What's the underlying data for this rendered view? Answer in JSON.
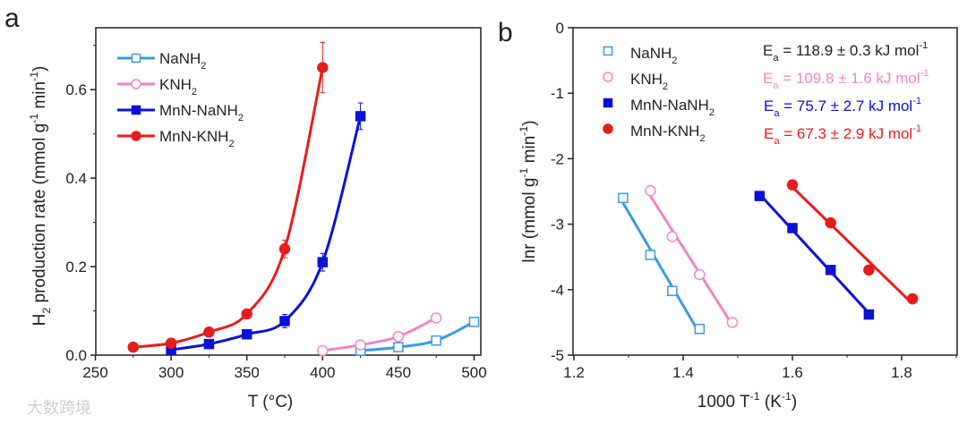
{
  "watermark": "大数跨境",
  "chart_data": [
    {
      "type": "line",
      "panel": "a",
      "xlabel": "T (°C)",
      "ylabel_parts": {
        "pre": "H",
        "sub": "2",
        "mid": " production rate (mmol g",
        "sup1": "-1",
        "mid2": " min",
        "sup2": "-1",
        "post": ")"
      },
      "xlim": [
        250,
        500
      ],
      "ylim": [
        0,
        0.74
      ],
      "xticks": [
        250,
        300,
        350,
        400,
        450,
        500
      ],
      "yticks": [
        0.0,
        0.2,
        0.4,
        0.6
      ],
      "ytick_labels": [
        "0.0",
        "0.2",
        "0.4",
        "0.6"
      ],
      "legend_position": "top-left",
      "series": [
        {
          "name": "NaNH",
          "sub": "2",
          "color": "#3b9be2",
          "marker": "square-open",
          "x": [
            425,
            450,
            475,
            500
          ],
          "y": [
            0.01,
            0.018,
            0.033,
            0.075
          ],
          "err": [
            0,
            0,
            0,
            0
          ]
        },
        {
          "name": "KNH",
          "sub": "2",
          "color": "#ef86c4",
          "marker": "circle-open",
          "x": [
            400,
            425,
            450,
            475
          ],
          "y": [
            0.01,
            0.023,
            0.042,
            0.084
          ],
          "err": [
            0,
            0,
            0,
            0
          ]
        },
        {
          "name": "MnN-NaNH",
          "sub": "2",
          "color": "#0a12d4",
          "marker": "square-filled",
          "x": [
            300,
            325,
            350,
            375,
            400,
            425
          ],
          "y": [
            0.012,
            0.025,
            0.047,
            0.077,
            0.21,
            0.54
          ],
          "err": [
            0,
            0,
            0,
            0.015,
            0.02,
            0.03
          ]
        },
        {
          "name": "MnN-KNH",
          "sub": "2",
          "color": "#e81c1c",
          "marker": "circle-filled",
          "x": [
            275,
            300,
            325,
            350,
            375,
            400
          ],
          "y": [
            0.018,
            0.027,
            0.052,
            0.093,
            0.24,
            0.65
          ],
          "err": [
            0,
            0,
            0,
            0,
            0.02,
            0.057
          ]
        }
      ]
    },
    {
      "type": "scatter",
      "panel": "b",
      "xlabel_parts": {
        "pre": "1000 T",
        "sup1": "-1",
        "mid": " (K",
        "sup2": "-1",
        "post": ")"
      },
      "ylabel_parts": {
        "pre": "lnr (mmol g",
        "sup1": "-1",
        "mid": " min",
        "sup2": "-1",
        "post": ")"
      },
      "xlim": [
        1.2,
        1.9
      ],
      "ylim": [
        -5,
        0
      ],
      "xticks": [
        1.2,
        1.4,
        1.6,
        1.8
      ],
      "xtick_labels": [
        "1.2",
        "1.4",
        "1.6",
        "1.8"
      ],
      "yticks": [
        0,
        -1,
        -2,
        -3,
        -4,
        -5
      ],
      "ytick_labels": [
        "0",
        "-1",
        "-2",
        "-3",
        "-4",
        "-5"
      ],
      "legend_position": "top-left",
      "fit": "linear",
      "series": [
        {
          "name": "NaNH",
          "sub": "2",
          "color": "#3b9be2",
          "marker": "square-open",
          "x": [
            1.29,
            1.34,
            1.38,
            1.43
          ],
          "y": [
            -2.6,
            -3.47,
            -4.02,
            -4.6
          ],
          "ea": {
            "pre": "E",
            "sub": "a",
            "text": " = 118.9 ± 0.3 kJ mol",
            "sup": "-1"
          },
          "ea_color": "#222222"
        },
        {
          "name": "KNH",
          "sub": "2",
          "color": "#ef86c4",
          "marker": "circle-open",
          "x": [
            1.34,
            1.38,
            1.43,
            1.49
          ],
          "y": [
            -2.49,
            -3.19,
            -3.77,
            -4.5
          ],
          "ea": {
            "pre": "E",
            "sub": "a",
            "text": " = 109.8 ± 1.6 kJ mol",
            "sup": "-1"
          },
          "ea_color": "#ef86c4"
        },
        {
          "name": "MnN-NaNH",
          "sub": "2",
          "color": "#0a12d4",
          "marker": "square-filled",
          "x": [
            1.54,
            1.6,
            1.67,
            1.74
          ],
          "y": [
            -2.57,
            -3.06,
            -3.7,
            -4.38
          ],
          "ea": {
            "pre": "E",
            "sub": "a",
            "text": " = 75.7 ± 2.7 kJ mol",
            "sup": "-1"
          },
          "ea_color": "#0a12d4"
        },
        {
          "name": "MnN-KNH",
          "sub": "2",
          "color": "#e81c1c",
          "marker": "circle-filled",
          "x": [
            1.6,
            1.67,
            1.74,
            1.82
          ],
          "y": [
            -2.4,
            -2.98,
            -3.7,
            -4.14
          ],
          "ea": {
            "pre": "E",
            "sub": "a",
            "text": " = 67.3 ± 2.9 kJ mol",
            "sup": "-1"
          },
          "ea_color": "#e81c1c"
        }
      ]
    }
  ]
}
